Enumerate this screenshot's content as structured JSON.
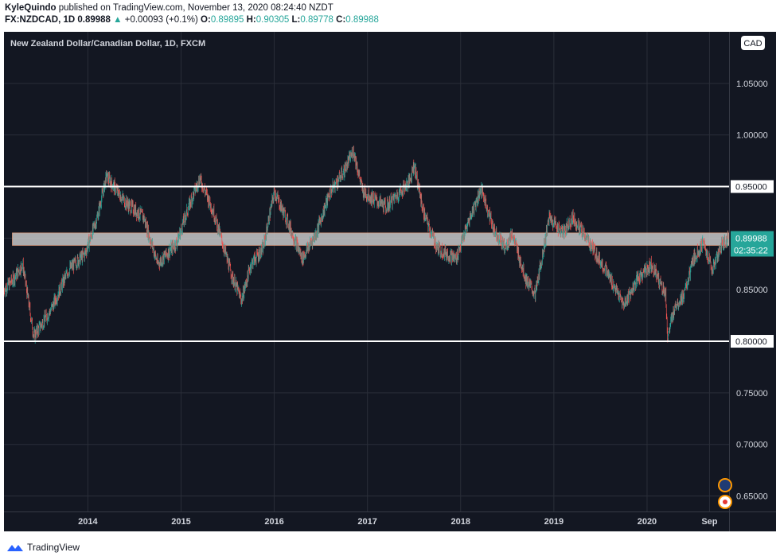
{
  "header": {
    "author": "KyleQuindo",
    "published": "published on TradingView.com, November 13, 2020 08:24:40 NZDT",
    "symbol": "FX:NZDCAD, 1D",
    "last": "0.89988",
    "change_arrow": "▲",
    "change": "+0.00093 (+0.1%)",
    "o_label": "O:",
    "o_value": "0.89895",
    "h_label": "H:",
    "h_value": "0.90305",
    "l_label": "L:",
    "l_value": "0.89778",
    "c_label": "C:",
    "c_value": "0.89988"
  },
  "footer": {
    "brand": "TradingView",
    "logo_icon": "tradingview-logo-icon"
  },
  "chart_data": {
    "type": "candlestick",
    "title": "New Zealand Dollar/Canadian Dollar, 1D, FXCM",
    "currency_label": "CAD",
    "price_tag": "0.89988",
    "countdown": "02:35:22",
    "y_ticks": [
      "0.65000",
      "0.70000",
      "0.75000",
      "0.80000",
      "0.85000",
      "0.90000",
      "0.95000",
      "1.00000",
      "1.05000"
    ],
    "ylim": [
      0.635,
      1.1
    ],
    "x_ticks": [
      "2014",
      "2015",
      "2016",
      "2017",
      "2018",
      "2019",
      "2020",
      "Sep"
    ],
    "x_tick_dates": [
      2014.0,
      2015.0,
      2016.0,
      2017.0,
      2018.0,
      2019.0,
      2020.0,
      2020.67
    ],
    "xlim": [
      2013.1,
      2020.88
    ],
    "horizontal_lines": [
      {
        "price": 0.95,
        "label": "0.95000",
        "color": "#ffffff"
      },
      {
        "price": 0.8,
        "label": "0.80000",
        "color": "#ffffff"
      }
    ],
    "zone": {
      "from_date": 2013.19,
      "to_date": 2020.88,
      "low": 0.893,
      "high": 0.905,
      "color": "#c8c8c8"
    },
    "price_path": [
      [
        2013.1,
        0.85
      ],
      [
        2013.2,
        0.86
      ],
      [
        2013.3,
        0.875
      ],
      [
        2013.42,
        0.805
      ],
      [
        2013.6,
        0.83
      ],
      [
        2013.8,
        0.87
      ],
      [
        2013.97,
        0.885
      ],
      [
        2014.1,
        0.92
      ],
      [
        2014.2,
        0.96
      ],
      [
        2014.4,
        0.935
      ],
      [
        2014.6,
        0.92
      ],
      [
        2014.75,
        0.875
      ],
      [
        2014.95,
        0.895
      ],
      [
        2015.1,
        0.935
      ],
      [
        2015.2,
        0.958
      ],
      [
        2015.35,
        0.925
      ],
      [
        2015.55,
        0.862
      ],
      [
        2015.65,
        0.84
      ],
      [
        2015.75,
        0.875
      ],
      [
        2015.88,
        0.89
      ],
      [
        2016.0,
        0.945
      ],
      [
        2016.15,
        0.915
      ],
      [
        2016.3,
        0.88
      ],
      [
        2016.45,
        0.905
      ],
      [
        2016.6,
        0.945
      ],
      [
        2016.75,
        0.965
      ],
      [
        2016.85,
        0.985
      ],
      [
        2016.95,
        0.945
      ],
      [
        2017.2,
        0.93
      ],
      [
        2017.45,
        0.955
      ],
      [
        2017.5,
        0.972
      ],
      [
        2017.6,
        0.925
      ],
      [
        2017.75,
        0.89
      ],
      [
        2017.95,
        0.88
      ],
      [
        2018.1,
        0.92
      ],
      [
        2018.22,
        0.948
      ],
      [
        2018.35,
        0.91
      ],
      [
        2018.48,
        0.89
      ],
      [
        2018.55,
        0.905
      ],
      [
        2018.7,
        0.86
      ],
      [
        2018.8,
        0.845
      ],
      [
        2018.95,
        0.92
      ],
      [
        2019.1,
        0.905
      ],
      [
        2019.2,
        0.92
      ],
      [
        2019.35,
        0.9
      ],
      [
        2019.55,
        0.87
      ],
      [
        2019.75,
        0.835
      ],
      [
        2019.9,
        0.86
      ],
      [
        2020.05,
        0.875
      ],
      [
        2020.2,
        0.845
      ],
      [
        2020.22,
        0.803
      ],
      [
        2020.3,
        0.835
      ],
      [
        2020.4,
        0.845
      ],
      [
        2020.5,
        0.88
      ],
      [
        2020.6,
        0.895
      ],
      [
        2020.7,
        0.87
      ],
      [
        2020.8,
        0.893
      ],
      [
        2020.87,
        0.9
      ]
    ],
    "colors": {
      "background": "#131722",
      "grid": "#2a2e39",
      "up": "#26a69a",
      "down": "#ef5350",
      "text": "#d1d4dc"
    }
  }
}
